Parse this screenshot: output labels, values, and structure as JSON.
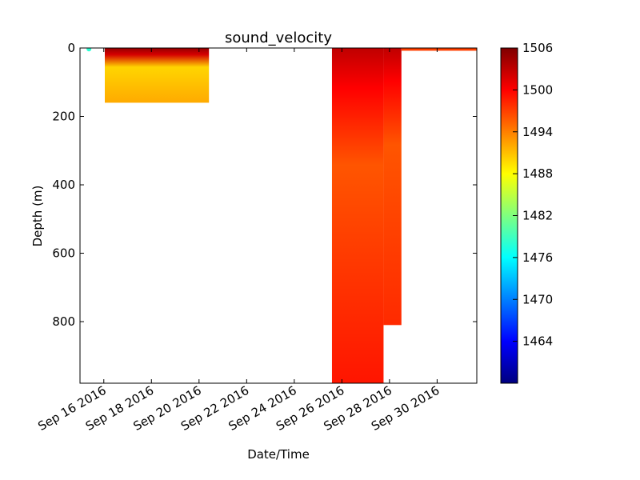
{
  "chart_data": {
    "type": "heatmap",
    "title": "sound_velocity",
    "xlabel": "Date/Time",
    "ylabel": "Depth (m)",
    "x_ticks": [
      "Sep 16 2016",
      "Sep 18 2016",
      "Sep 20 2016",
      "Sep 22 2016",
      "Sep 24 2016",
      "Sep 26 2016",
      "Sep 28 2016",
      "Sep 30 2016"
    ],
    "x_tick_dates": [
      "2016-09-16",
      "2016-09-18",
      "2016-09-20",
      "2016-09-22",
      "2016-09-24",
      "2016-09-26",
      "2016-09-28",
      "2016-09-30"
    ],
    "xlim": [
      "2016-09-15T00:00",
      "2016-10-01T16:00"
    ],
    "y_ticks": [
      "0",
      "200",
      "400",
      "600",
      "800"
    ],
    "y_tick_values": [
      0,
      200,
      400,
      600,
      800
    ],
    "ylim": [
      980,
      0
    ],
    "y_inverted": true,
    "colorbar": {
      "colormap": "jet",
      "range": [
        1458,
        1506
      ],
      "ticks": [
        "1506",
        "1500",
        "1494",
        "1488",
        "1482",
        "1476",
        "1470",
        "1464"
      ],
      "tick_values": [
        1506,
        1500,
        1494,
        1488,
        1482,
        1476,
        1470,
        1464
      ]
    },
    "profiles": [
      {
        "start": "2016-09-16T01:00",
        "end": "2016-09-20T10:00",
        "max_depth": 160,
        "surface_value": 1505,
        "mid_value": 1490,
        "deep_value": 1492
      },
      {
        "start": "2016-09-25T14:00",
        "end": "2016-09-27T18:00",
        "max_depth": 980,
        "surface_value": 1503,
        "mid_value": 1496,
        "deep_value": 1499
      },
      {
        "start": "2016-09-27T18:00",
        "end": "2016-09-28T12:00",
        "max_depth": 810,
        "surface_value": 1503,
        "mid_value": 1496,
        "deep_value": 1498
      },
      {
        "start": "2016-09-28T12:00",
        "end": "2016-10-01T16:00",
        "max_depth": 8,
        "surface_value": 1500,
        "mid_value": 1497,
        "deep_value": 1497
      }
    ],
    "outlier_points": [
      {
        "date": "2016-09-15T09:00",
        "depth": 3,
        "value": 1478
      }
    ]
  }
}
